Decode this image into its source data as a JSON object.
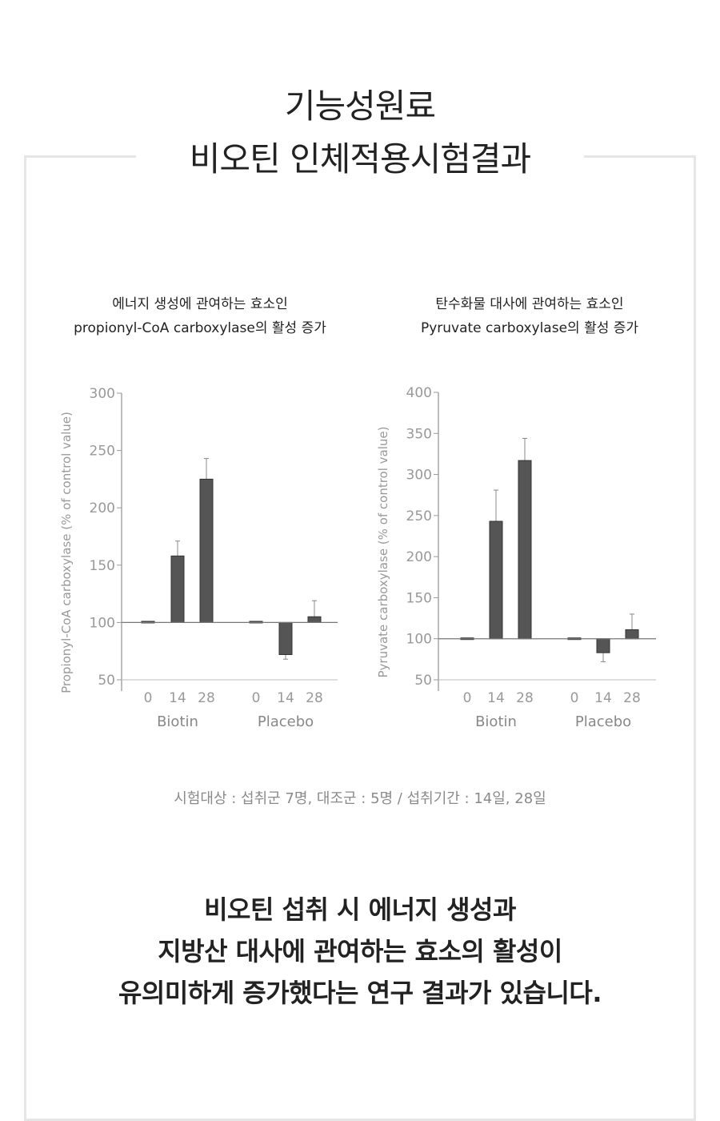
{
  "header": {
    "line1": "기능성원료",
    "line2": "비오틴 인체적용시험결과"
  },
  "chart_data": [
    {
      "type": "bar",
      "title_lines": [
        "에너지 생성에 관여하는 효소인",
        "propionyl-CoA carboxylase의 활성 증가"
      ],
      "ylabel": "Propionyl-CoA carboxylase (% of control value)",
      "ylim": [
        50,
        300
      ],
      "yticks": [
        "50",
        "100",
        "150",
        "200",
        "250",
        "300"
      ],
      "baseline": 100,
      "groups": [
        "Biotin",
        "Placebo"
      ],
      "categories": [
        "0",
        "14",
        "28",
        "0",
        "14",
        "28"
      ],
      "values": [
        101,
        158,
        225,
        101,
        72,
        105
      ],
      "error_ends": [
        null,
        171,
        243,
        null,
        68,
        119
      ],
      "color": "#555555"
    },
    {
      "type": "bar",
      "title_lines": [
        "탄수화물 대사에 관여하는 효소인",
        "Pyruvate carboxylase의 활성 증가"
      ],
      "ylabel": "Pyruvate carboxylase (% of control value)",
      "ylim": [
        50,
        400
      ],
      "yticks": [
        "50",
        "100",
        "150",
        "200",
        "250",
        "300",
        "350",
        "400"
      ],
      "baseline": 100,
      "groups": [
        "Biotin",
        "Placebo"
      ],
      "categories": [
        "0",
        "14",
        "28",
        "0",
        "14",
        "28"
      ],
      "values": [
        101,
        243,
        317,
        101,
        83,
        111
      ],
      "error_ends": [
        null,
        281,
        344,
        null,
        72,
        130
      ],
      "color": "#555555"
    }
  ],
  "note": "시험대상 : 섭취군 7명, 대조군 : 5명 / 섭취기간 : 14일, 28일",
  "conclusion": [
    "비오틴 섭취 시 에너지 생성과",
    "지방산 대사에 관여하는 효소의 활성이",
    "유의미하게 증가했다는 연구 결과가 있습니다."
  ]
}
